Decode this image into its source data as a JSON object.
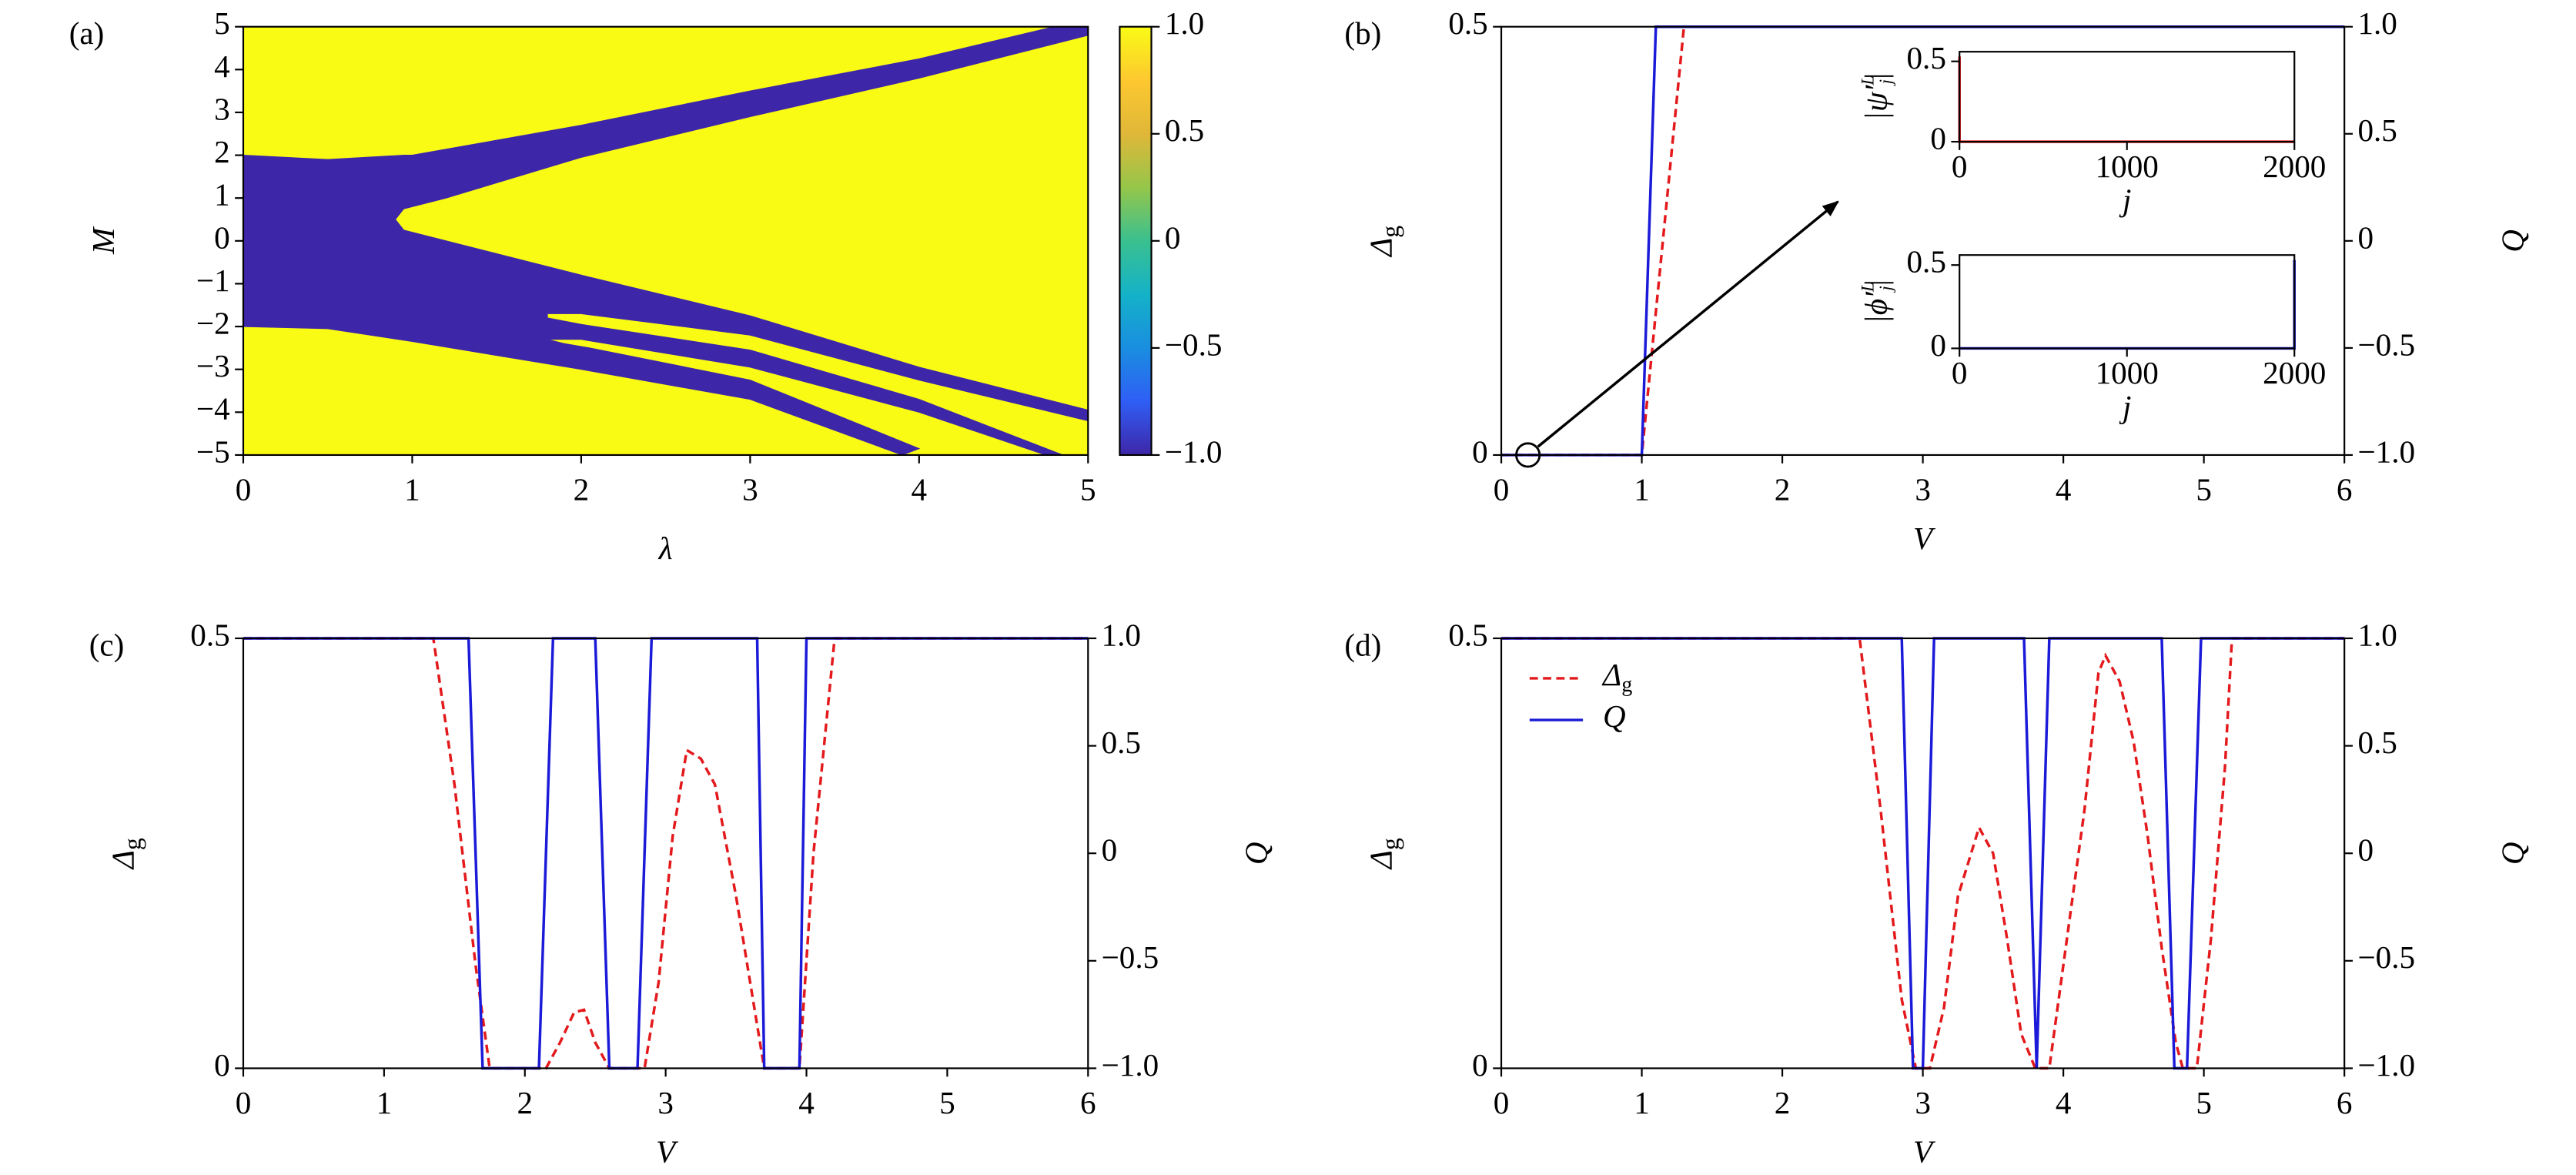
{
  "chart_data": [
    {
      "type": "heatmap",
      "label": "(a)",
      "xlabel": "λ",
      "ylabel": "M",
      "xlim": [
        0,
        5
      ],
      "xticks": [
        0,
        1,
        2,
        3,
        4,
        5
      ],
      "ylim": [
        -5,
        5
      ],
      "yticks": [
        {
          "value": -5,
          "label": "−5"
        },
        {
          "value": -4,
          "label": "−4"
        },
        {
          "value": -3,
          "label": "−3"
        },
        {
          "value": -2,
          "label": "−2"
        },
        {
          "value": -1,
          "label": "−1"
        },
        0,
        1,
        2,
        3,
        4,
        5
      ],
      "fill_value": 1,
      "regions": [
        {
          "value": -1,
          "x": [
            0,
            0.5,
            0.95,
            0.95,
            0.9,
            0.95,
            1.5,
            1.8,
            1.8,
            1.9,
            2.0,
            1.0,
            0.5,
            0
          ],
          "y": [
            2,
            1.9,
            2,
            0.75,
            0.5,
            0.25,
            -0.3,
            -1.7,
            -2.3,
            -2.4,
            -3.0,
            -2.35,
            -2.05,
            -2
          ]
        },
        {
          "value": -1,
          "x": [
            0.95,
            1,
            2,
            3,
            4,
            4.8,
            5,
            5,
            4,
            3,
            2,
            1.2,
            0.95
          ],
          "y": [
            2,
            2,
            2.7,
            3.5,
            4.25,
            5,
            5,
            4.8,
            3.8,
            2.9,
            1.95,
            1.0,
            0.75
          ]
        },
        {
          "value": -1,
          "x": [
            1.5,
            2,
            3,
            4,
            5,
            5,
            4,
            3,
            2,
            1.8
          ],
          "y": [
            -0.3,
            -0.8,
            -1.75,
            -2.95,
            -3.95,
            -4.2,
            -3.25,
            -2.2,
            -1.7,
            -1.7
          ]
        },
        {
          "value": -1,
          "x": [
            1.8,
            2,
            3,
            4,
            4.85,
            4.75,
            4,
            3,
            2,
            1.8
          ],
          "y": [
            -1.8,
            -1.95,
            -2.55,
            -3.7,
            -5,
            -5,
            -4.0,
            -2.95,
            -2.3,
            -2.3
          ]
        },
        {
          "value": -1,
          "x": [
            1.9,
            2.05,
            3,
            4,
            3.9,
            3,
            2
          ],
          "y": [
            -2.4,
            -2.5,
            -3.25,
            -4.85,
            -5,
            -3.7,
            -3.0
          ]
        }
      ],
      "colormap": [
        "#3e26a8",
        "#2f5ef5",
        "#1a8ee0",
        "#14b2c8",
        "#3ac08f",
        "#95c64a",
        "#e0b738",
        "#fdc830",
        "#f9fb15"
      ],
      "colorbar": {
        "lim": [
          -1,
          1
        ],
        "ticks": [
          {
            "value": -1,
            "label": "−1.0"
          },
          {
            "value": -0.5,
            "label": "−0.5"
          },
          0,
          0.5,
          {
            "value": 1,
            "label": "1.0"
          }
        ]
      }
    },
    {
      "type": "line",
      "label": "(b)",
      "xlabel": "V",
      "ylabel": {
        "text": "Δ",
        "sub": "g"
      },
      "y2label": "Q",
      "xlim": [
        0,
        6
      ],
      "xticks": [
        0,
        1,
        2,
        3,
        4,
        5,
        6
      ],
      "ylim": [
        0,
        0.5
      ],
      "yticks": [
        0,
        0.5
      ],
      "y2lim": [
        -1,
        1
      ],
      "y2ticks": [
        {
          "value": -1,
          "label": "−1.0"
        },
        {
          "value": -0.5,
          "label": "−0.5"
        },
        0,
        0.5,
        {
          "value": 1,
          "label": "1.0"
        }
      ],
      "series": [
        {
          "color": "#e3191c",
          "linestyle": "dashed",
          "x": [
            0,
            1,
            1.3,
            6
          ],
          "values": [
            0,
            0,
            0.5,
            0.5
          ]
        },
        {
          "color": "#1a1ad8",
          "linestyle": "solid",
          "axis": "y2",
          "x": [
            0,
            1,
            1.1,
            6
          ],
          "values": [
            -1,
            -1,
            1,
            1
          ]
        }
      ],
      "insets": [
        {
          "xlim": [
            0,
            2000
          ],
          "xticks": [
            0,
            1000,
            2000
          ],
          "ylim": [
            0,
            0.56
          ],
          "yticks": [
            0,
            0.5
          ],
          "xlabel": "j",
          "ylabel": {
            "text": "|ψ′",
            "sup": "L",
            "sub": "j",
            "end": "|"
          },
          "series": [
            {
              "color": "#e3191c",
              "x": [
                0,
                0,
                5,
                2000
              ],
              "values": [
                0.53,
                0,
                0,
                0
              ]
            }
          ]
        },
        {
          "xlim": [
            0,
            2000
          ],
          "xticks": [
            0,
            1000,
            2000
          ],
          "ylim": [
            0,
            0.56
          ],
          "yticks": [
            0,
            0.5
          ],
          "xlabel": "j",
          "ylabel": {
            "text": "|ϕ′",
            "sup": "L",
            "sub": "j",
            "end": "|"
          },
          "series": [
            {
              "color": "#1a1ad8",
              "x": [
                0,
                1995,
                2000,
                2000
              ],
              "values": [
                0,
                0,
                0,
                0.53
              ]
            }
          ]
        }
      ]
    },
    {
      "type": "line",
      "label": "(c)",
      "xlabel": "V",
      "ylabel": {
        "text": "Δ",
        "sub": "g"
      },
      "y2label": "Q",
      "xlim": [
        0,
        6
      ],
      "xticks": [
        0,
        1,
        2,
        3,
        4,
        5,
        6
      ],
      "ylim": [
        0,
        0.5
      ],
      "yticks": [
        0,
        0.5
      ],
      "y2lim": [
        -1,
        1
      ],
      "y2ticks": [
        {
          "value": -1,
          "label": "−1.0"
        },
        {
          "value": -0.5,
          "label": "−0.5"
        },
        0,
        0.5,
        {
          "value": 1,
          "label": "1.0"
        }
      ],
      "series": [
        {
          "color": "#e3191c",
          "linestyle": "dashed",
          "x": [
            0,
            1.35,
            1.5,
            1.65,
            1.75,
            2.15,
            2.25,
            2.35,
            2.42,
            2.5,
            2.6,
            2.85,
            2.95,
            3.05,
            3.15,
            3.25,
            3.35,
            3.5,
            3.6,
            3.7,
            3.95,
            4.05,
            4.2,
            6
          ],
          "values": [
            0.5,
            0.5,
            0.33,
            0.12,
            0,
            0,
            0.03,
            0.065,
            0.068,
            0.03,
            0,
            0,
            0.1,
            0.27,
            0.37,
            0.36,
            0.33,
            0.2,
            0.1,
            0,
            0,
            0.25,
            0.5,
            0.5
          ]
        },
        {
          "color": "#1a1ad8",
          "linestyle": "solid",
          "axis": "y2",
          "x": [
            0,
            1.6,
            1.7,
            2.1,
            2.2,
            2.5,
            2.6,
            2.8,
            2.9,
            3.65,
            3.7,
            3.95,
            4.0,
            6
          ],
          "values": [
            1,
            1,
            -1,
            -1,
            1,
            1,
            -1,
            -1,
            1,
            1,
            -1,
            -1,
            1,
            1
          ]
        }
      ]
    },
    {
      "type": "line",
      "label": "(d)",
      "xlabel": "V",
      "ylabel": {
        "text": "Δ",
        "sub": "g"
      },
      "y2label": "Q",
      "xlim": [
        0,
        6
      ],
      "xticks": [
        0,
        1,
        2,
        3,
        4,
        5,
        6
      ],
      "ylim": [
        0,
        0.5
      ],
      "yticks": [
        0,
        0.5
      ],
      "y2lim": [
        -1,
        1
      ],
      "y2ticks": [
        {
          "value": -1,
          "label": "−1.0"
        },
        {
          "value": -0.5,
          "label": "−0.5"
        },
        0,
        0.5,
        {
          "value": 1,
          "label": "1.0"
        }
      ],
      "legend": "upper left",
      "series": [
        {
          "name": "Δ",
          "name_sub": "g",
          "color": "#e3191c",
          "linestyle": "dashed",
          "x": [
            0,
            2.55,
            2.7,
            2.85,
            2.95,
            3.05,
            3.15,
            3.25,
            3.4,
            3.5,
            3.6,
            3.7,
            3.8,
            3.9,
            4.0,
            4.15,
            4.25,
            4.3,
            4.4,
            4.5,
            4.6,
            4.7,
            4.8,
            4.85,
            4.95,
            5.05,
            5.15,
            5.2,
            6
          ],
          "values": [
            0.5,
            0.5,
            0.3,
            0.08,
            0,
            0,
            0.07,
            0.2,
            0.28,
            0.25,
            0.15,
            0.04,
            0,
            0,
            0.12,
            0.3,
            0.46,
            0.48,
            0.45,
            0.38,
            0.27,
            0.14,
            0.03,
            0,
            0,
            0.15,
            0.35,
            0.5,
            0.5
          ]
        },
        {
          "name": "Q",
          "color": "#1a1ad8",
          "linestyle": "solid",
          "axis": "y2",
          "x": [
            0,
            2.85,
            2.93,
            3.0,
            3.08,
            3.72,
            3.81,
            3.9,
            4.7,
            4.79,
            4.88,
            4.98,
            6
          ],
          "values": [
            1,
            1,
            -1,
            -1,
            1,
            1,
            -1,
            1,
            1,
            -1,
            -1,
            1,
            1
          ]
        }
      ]
    }
  ]
}
